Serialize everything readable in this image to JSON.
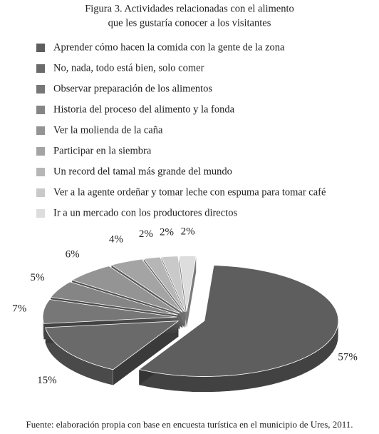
{
  "chart_data": {
    "type": "pie",
    "title": [
      "Figura 3. Actividades relacionadas con el alimento",
      "que les gustaría conocer a los visitantes"
    ],
    "categories": [
      "Aprender cómo hacen la comida con la gente de la zona",
      "No, nada, todo está bien, solo comer",
      "Observar preparación de los alimentos",
      "Historia del proceso del alimento y la fonda",
      "Ver la molienda de la caña",
      "Participar en la siembra",
      "Un record del tamal más grande del mundo",
      "Ver a la agente ordeñar y tomar leche con espuma para tomar café",
      "Ir a un mercado con los productores directos"
    ],
    "values": [
      57,
      15,
      7,
      5,
      6,
      4,
      2,
      2,
      2
    ],
    "value_labels": [
      "57%",
      "15%",
      "7%",
      "5%",
      "6%",
      "4%",
      "2%",
      "2%",
      "2%"
    ],
    "colors": [
      "#5e5e5e",
      "#6a6a6a",
      "#777777",
      "#858585",
      "#949494",
      "#a4a4a4",
      "#b6b6b6",
      "#c9c9c9",
      "#dddddd"
    ],
    "source": "Fuente: elaboración propia con base en encuesta turística en el municipio de Ures, 2011."
  }
}
